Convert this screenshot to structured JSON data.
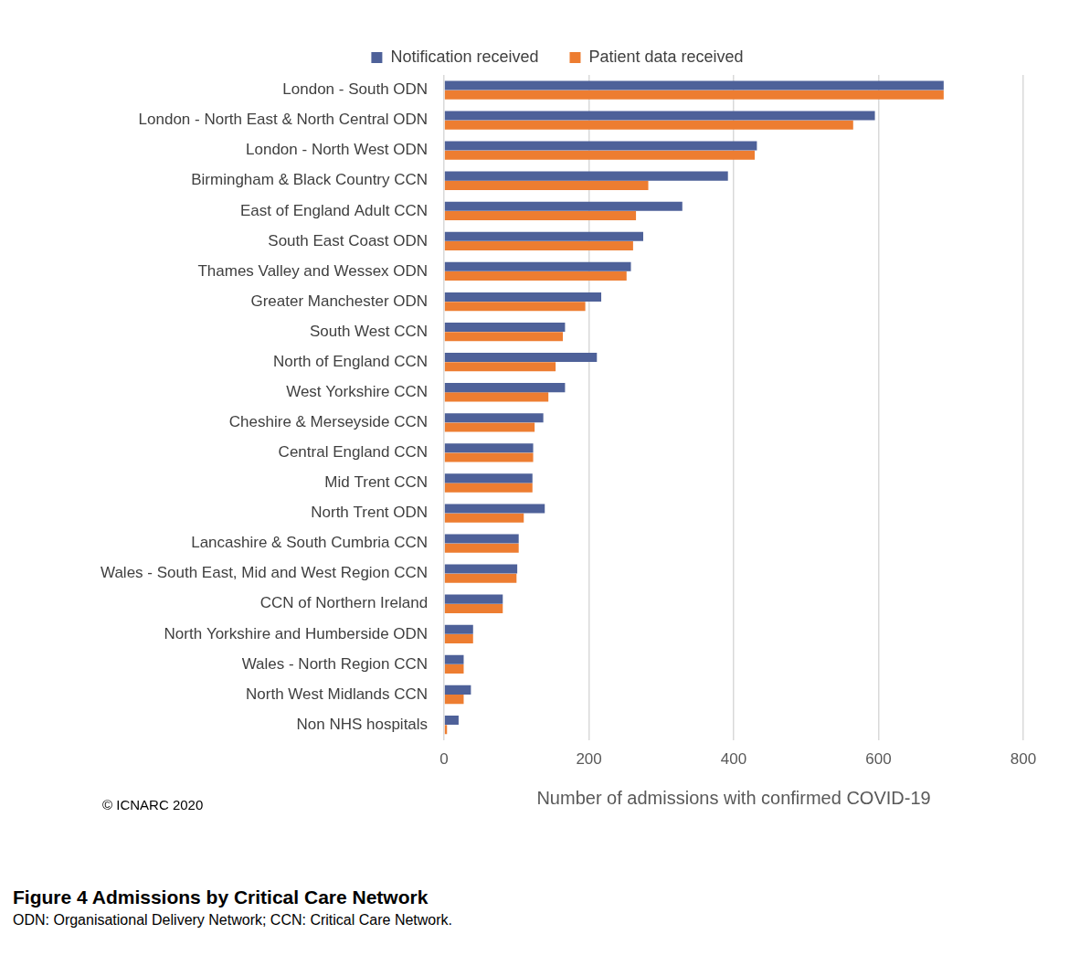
{
  "chart_data": {
    "type": "bar",
    "orientation": "horizontal",
    "title": "Figure 4  Admissions by Critical Care Network",
    "subtitle": "ODN: Organisational Delivery Network; CCN: Critical Care Network.",
    "annotations": [
      "© ICNARC 2020"
    ],
    "xlabel": "Number of admissions with confirmed COVID-19",
    "categories": [
      "London - South ODN",
      "London - North East & North Central ODN",
      "London - North West ODN",
      "Birmingham & Black Country CCN",
      "East of England Adult CCN",
      "South East Coast ODN",
      "Thames Valley and Wessex ODN",
      "Greater Manchester ODN",
      "South West CCN",
      "North of England CCN",
      "West Yorkshire CCN",
      "Cheshire & Merseyside CCN",
      "Central England CCN",
      "Mid Trent CCN",
      "North Trent ODN",
      "Lancashire & South Cumbria CCN",
      "Wales - South East, Mid and West Region CCN",
      "CCN of Northern Ireland",
      "North Yorkshire and Humberside ODN",
      "Wales - North Region CCN",
      "North West Midlands CCN",
      "Non NHS hospitals"
    ],
    "series": [
      {
        "name": "Notification received",
        "color": "#4e6199",
        "values": [
          690,
          595,
          432,
          392,
          329,
          275,
          258,
          217,
          167,
          211,
          167,
          137,
          123,
          122,
          139,
          103,
          101,
          81,
          40,
          27,
          37,
          20
        ]
      },
      {
        "name": "Patient data received",
        "color": "#ed7d31",
        "values": [
          690,
          565,
          429,
          282,
          265,
          261,
          252,
          195,
          164,
          154,
          144,
          125,
          123,
          122,
          110,
          103,
          100,
          81,
          40,
          27,
          27,
          4
        ]
      }
    ],
    "xlim": [
      0,
      800
    ],
    "xticks": [
      0,
      200,
      400,
      600,
      800
    ],
    "grid": true,
    "legend": "top"
  }
}
